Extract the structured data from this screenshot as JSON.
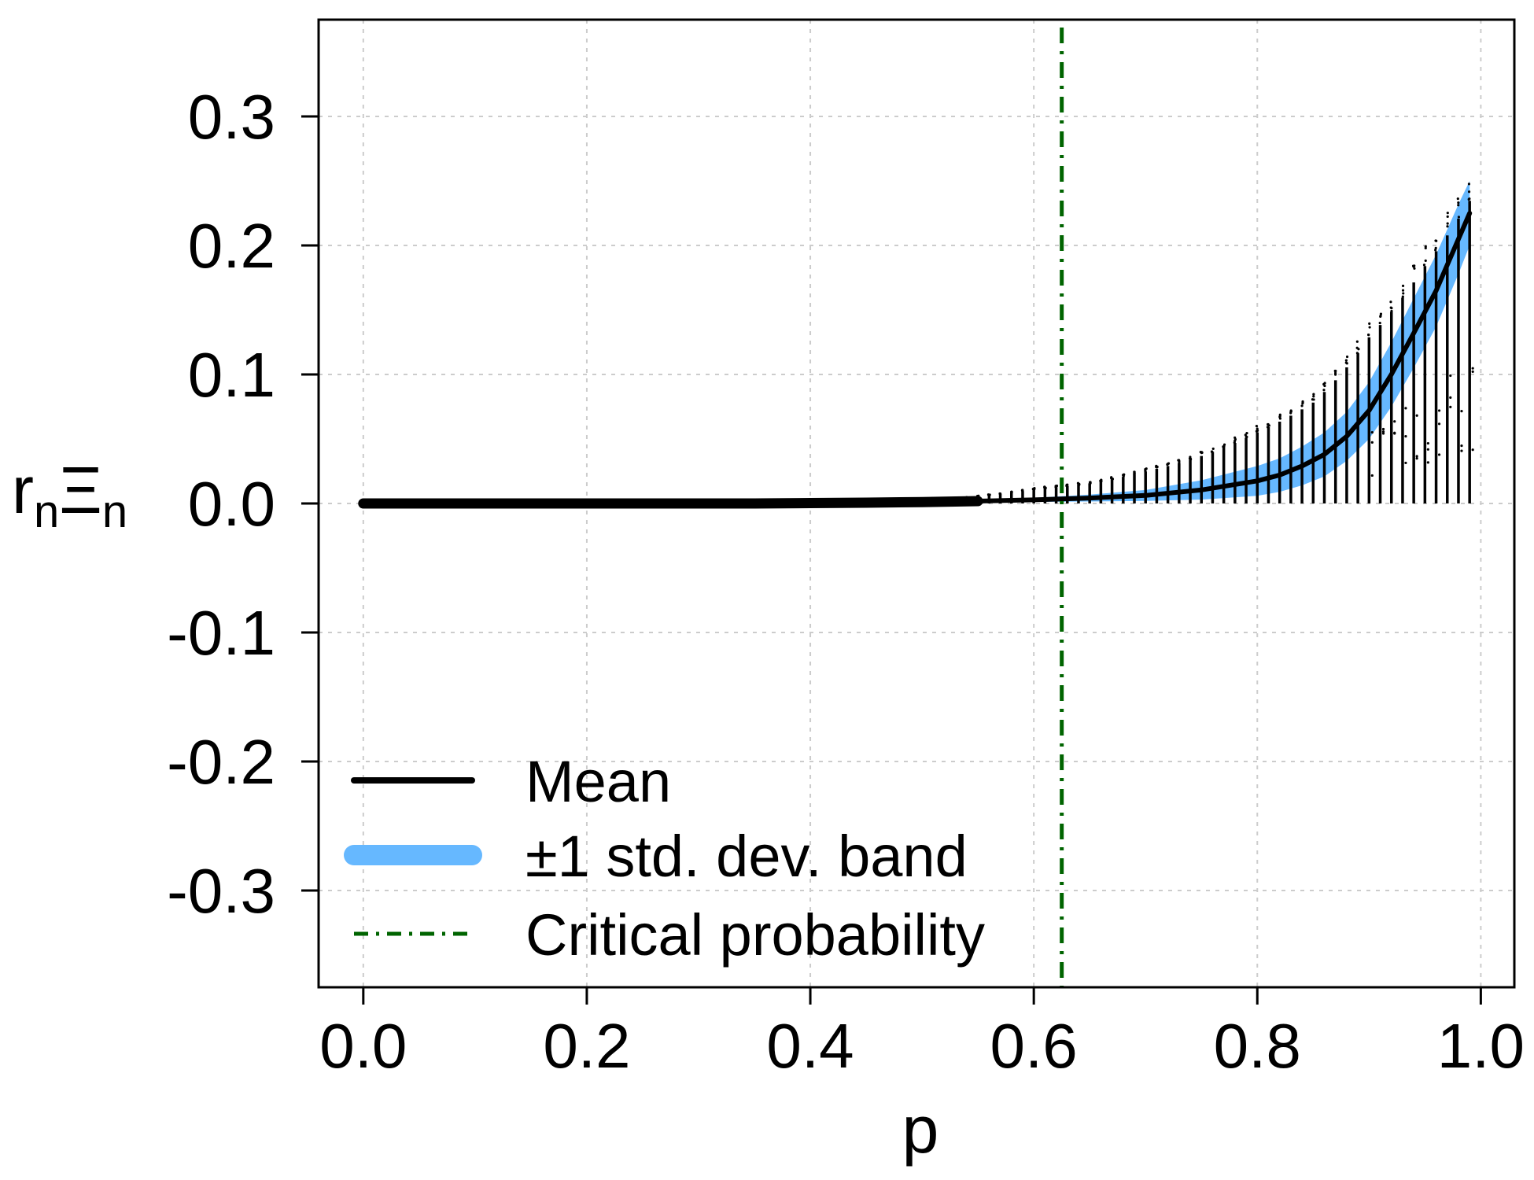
{
  "chart_data": {
    "type": "line",
    "title": "",
    "xlabel": "p",
    "ylabel": {
      "main_1": "r",
      "sub_1": "n",
      "main_2": "Ξ",
      "sub_2": "n"
    },
    "xlim": [
      -0.04,
      1.03
    ],
    "ylim": [
      -0.375,
      0.375
    ],
    "x_ticks": [
      0.0,
      0.2,
      0.4,
      0.6,
      0.8,
      1.0
    ],
    "x_tick_labels": [
      "0.0",
      "0.2",
      "0.4",
      "0.6",
      "0.8",
      "1.0"
    ],
    "y_ticks": [
      -0.3,
      -0.2,
      -0.1,
      0.0,
      0.1,
      0.2,
      0.3
    ],
    "y_tick_labels": [
      "-0.3",
      "-0.2",
      "-0.1",
      "0.0",
      "0.1",
      "0.2",
      "0.3"
    ],
    "grid": true,
    "colors": {
      "mean": "#000000",
      "band": "#66b8ff",
      "critical": "#006400",
      "grid": "#cccccc",
      "samples": "#000000"
    },
    "critical_probability": 0.625,
    "mean_curve": {
      "x": [
        0.0,
        0.05,
        0.1,
        0.15,
        0.2,
        0.25,
        0.3,
        0.35,
        0.4,
        0.45,
        0.5,
        0.55,
        0.6,
        0.625,
        0.65,
        0.7,
        0.75,
        0.8,
        0.82,
        0.84,
        0.86,
        0.88,
        0.9,
        0.92,
        0.94,
        0.96,
        0.98,
        0.99
      ],
      "y": [
        0.0,
        0.0,
        0.0,
        0.0,
        0.0,
        0.0,
        0.0,
        0.0,
        0.0003,
        0.0006,
        0.0011,
        0.0018,
        0.0028,
        0.0035,
        0.0042,
        0.0062,
        0.0105,
        0.0175,
        0.022,
        0.029,
        0.038,
        0.052,
        0.072,
        0.1,
        0.132,
        0.165,
        0.205,
        0.225
      ]
    },
    "band": {
      "x": [
        0.55,
        0.6,
        0.65,
        0.7,
        0.75,
        0.8,
        0.82,
        0.84,
        0.86,
        0.88,
        0.9,
        0.92,
        0.94,
        0.96,
        0.98,
        0.99
      ],
      "lower": [
        0.0008,
        0.0012,
        0.0015,
        0.002,
        0.003,
        0.006,
        0.009,
        0.014,
        0.021,
        0.033,
        0.05,
        0.075,
        0.105,
        0.137,
        0.178,
        0.2
      ],
      "upper": [
        0.0028,
        0.0044,
        0.0069,
        0.0104,
        0.018,
        0.029,
        0.035,
        0.044,
        0.055,
        0.071,
        0.094,
        0.125,
        0.159,
        0.193,
        0.232,
        0.25
      ]
    },
    "samples": {
      "x_start": 0.5,
      "x_end": 0.99,
      "x_step": 0.01,
      "x_range_min_p": [
        0.55,
        0.6,
        0.65,
        0.7,
        0.75,
        0.8,
        0.85,
        0.9,
        0.95,
        0.99
      ],
      "x_range_max": [
        0.006,
        0.012,
        0.017,
        0.027,
        0.04,
        0.06,
        0.085,
        0.14,
        0.2,
        0.255
      ]
    },
    "legend": {
      "position": "bottom-left",
      "entries": [
        {
          "label": "Mean",
          "style": "solid-line",
          "color": "#000000"
        },
        {
          "label": "±1 std. dev. band",
          "style": "thick-band",
          "color": "#66b8ff"
        },
        {
          "label": "Critical probability",
          "style": "dash-dot",
          "color": "#006400"
        }
      ]
    }
  }
}
